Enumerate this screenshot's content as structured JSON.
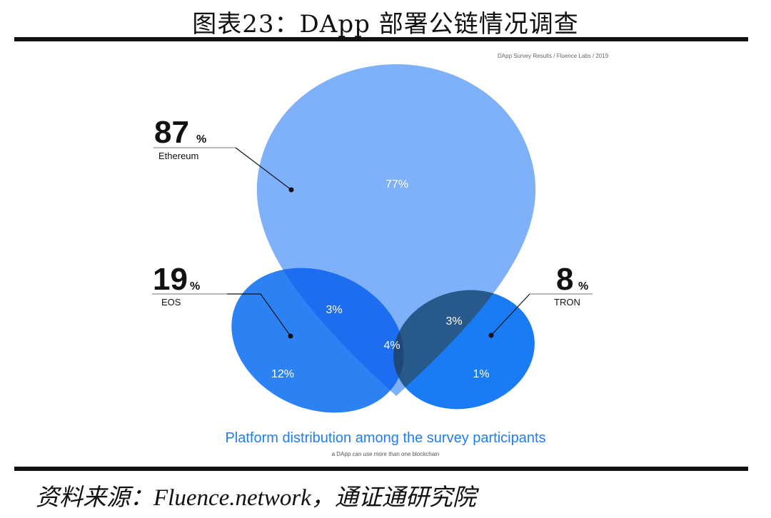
{
  "title": "图表23：DApp 部署公链情况调查",
  "source_note": "DApp Survey Results / Fluence Labs / 2019",
  "platforms": [
    {
      "name": "Ethereum",
      "percent_value": "87",
      "percent_sign": "%"
    },
    {
      "name": "EOS",
      "percent_value": "19",
      "percent_sign": "%"
    },
    {
      "name": "TRON",
      "percent_value": "8",
      "percent_sign": "%"
    }
  ],
  "regions": {
    "ethereum_only": "77%",
    "ethereum_eos": "3%",
    "ethereum_tron": "3%",
    "all_three": "4%",
    "eos_only": "12%",
    "tron_only": "1%"
  },
  "caption": "Platform distribution among the survey participants",
  "subcaption": "a DApp can use more than one blockchain",
  "footer": "资料来源：Fluence.network，通证通研究院",
  "colors": {
    "ethereum": "#7fb1fb",
    "eos": "#2d82f3",
    "tron": "#1a7cf5",
    "eth_eos_overlap": "#1d6df0",
    "eth_tron_overlap": "#275a8a",
    "all_overlap": "#1f4777",
    "caption": "#1f7ef2"
  }
}
